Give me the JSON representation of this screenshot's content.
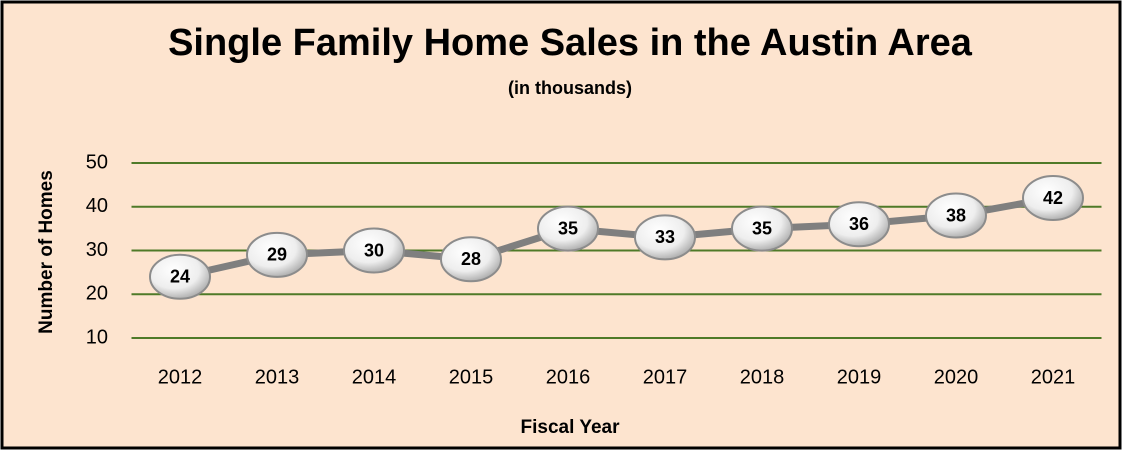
{
  "chart_data": {
    "type": "line",
    "title": "Single Family Home Sales in the Austin Area",
    "subtitle": "(in thousands)",
    "x_label": "Fiscal Year",
    "y_label": "Number of Homes",
    "categories": [
      "2012",
      "2013",
      "2014",
      "2015",
      "2016",
      "2017",
      "2018",
      "2019",
      "2020",
      "2021"
    ],
    "values": [
      24,
      29,
      30,
      28,
      35,
      33,
      35,
      36,
      38,
      42
    ],
    "color": "#7f7f7f",
    "grid_color": "#4f7a28",
    "ylim": [
      10,
      50
    ],
    "yticks": [
      10,
      20,
      30,
      40,
      50
    ],
    "grid": true
  }
}
